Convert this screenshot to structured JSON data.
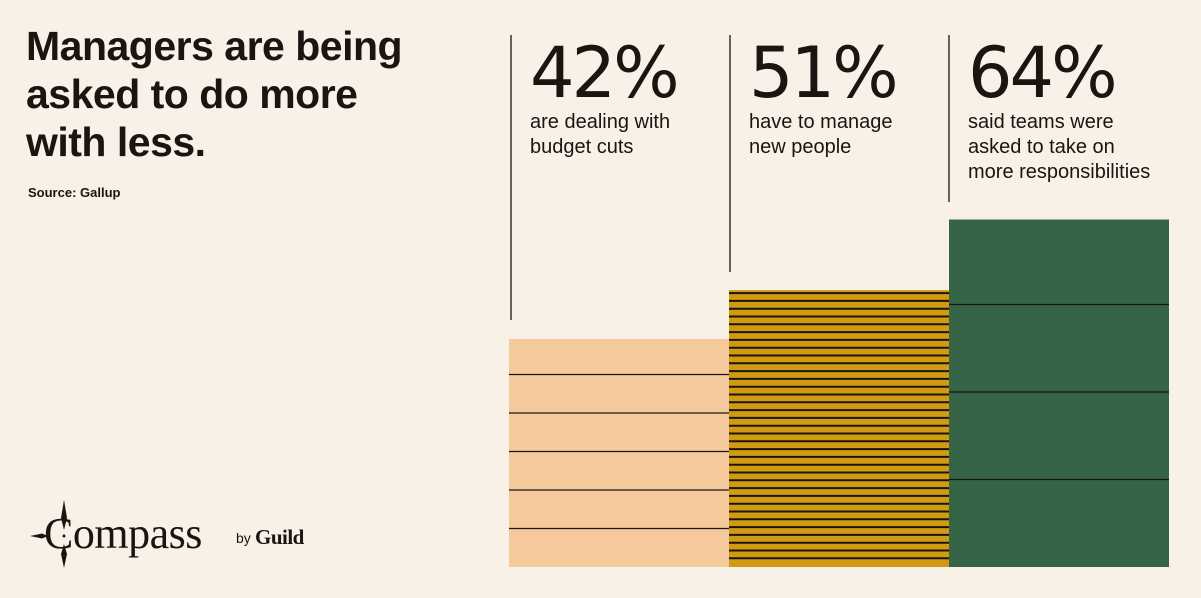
{
  "headline": "Managers are being asked to do more with less.",
  "source": "Source: Gallup",
  "logo": {
    "word": "Compass",
    "by": "by",
    "brand": "Guild"
  },
  "chart_data": {
    "type": "bar",
    "categories": [
      "are dealing with budget cuts",
      "have to manage new people",
      "said teams were asked to take on more responsibilities"
    ],
    "values": [
      42,
      51,
      64
    ],
    "value_labels": [
      "42%",
      "51%",
      "64%"
    ],
    "description_lines": [
      [
        "are dealing with",
        "budget cuts"
      ],
      [
        "have to manage",
        "new people"
      ],
      [
        "said teams were",
        "asked to take on",
        "more responsibilities"
      ]
    ],
    "colors": [
      "#f5c99c",
      "#d09b12",
      "#356446"
    ],
    "stripe_color": "#1b1410",
    "ylim": [
      0,
      100
    ],
    "title": "",
    "xlabel": "",
    "ylabel": ""
  }
}
